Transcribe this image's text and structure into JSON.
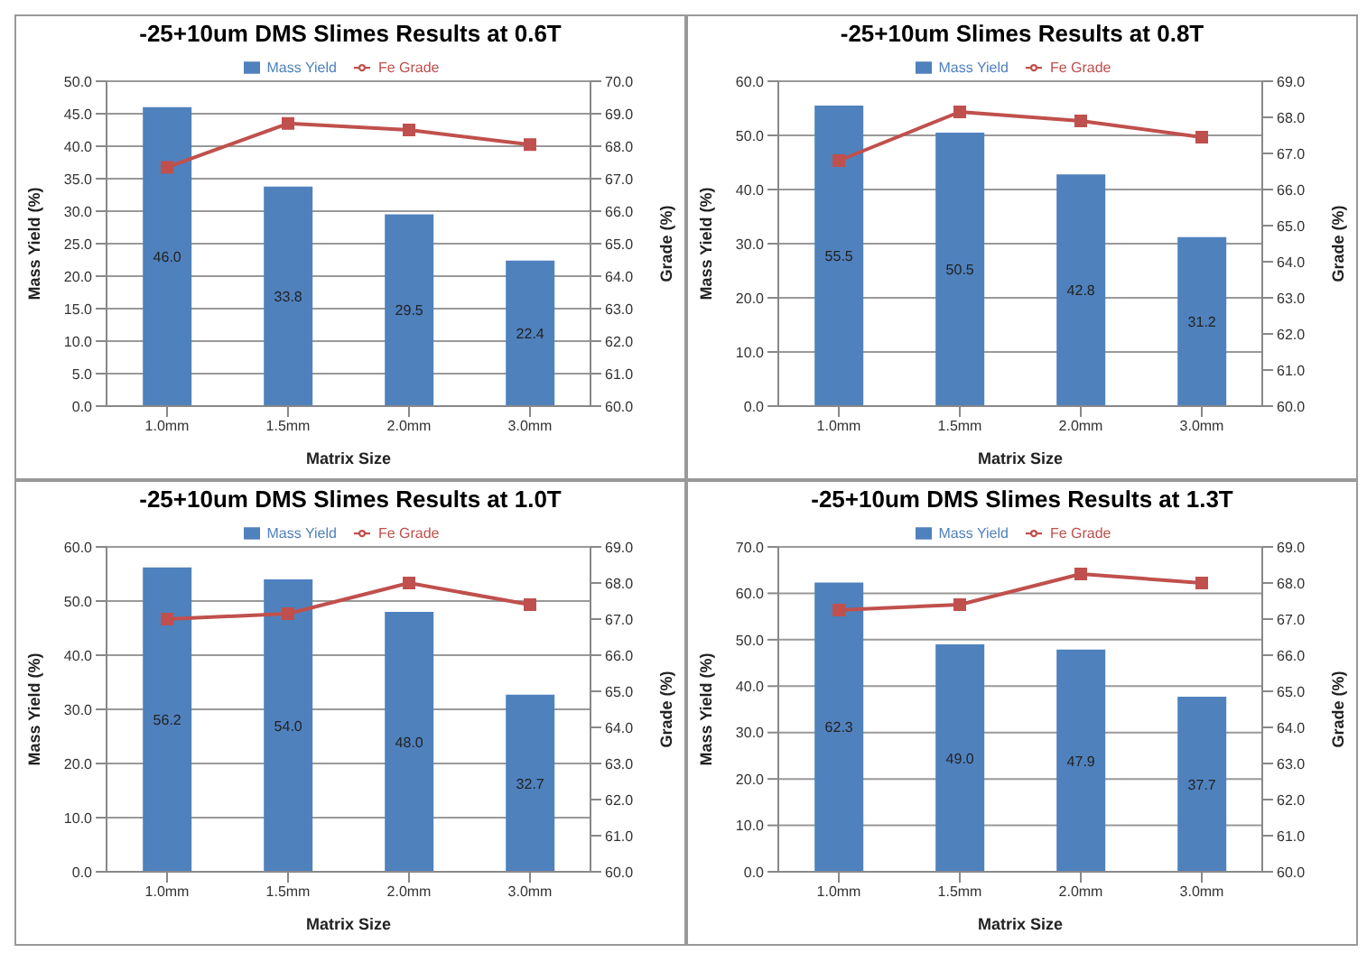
{
  "chart_data": [
    {
      "type": "bar",
      "title": "-25+10um DMS Slimes Results at 0.6T",
      "xlabel": "Matrix Size",
      "ylabel": "Mass Yield (%)",
      "y2label": "Grade (%)",
      "categories": [
        "1.0mm",
        "1.5mm",
        "2.0mm",
        "3.0mm"
      ],
      "series": [
        {
          "name": "Mass Yield",
          "color": "#4f81bd",
          "values": [
            46.0,
            33.8,
            29.5,
            22.4
          ],
          "value_labels": [
            "46.0",
            "33.8",
            "29.5",
            "22.4"
          ]
        },
        {
          "name": "Fe Grade",
          "type": "line",
          "axis": "y2",
          "color": "#c0504d",
          "marker": "square",
          "values": [
            67.35,
            68.7,
            68.5,
            68.05
          ]
        }
      ],
      "ylim": [
        0,
        50
      ],
      "yticks": [
        {
          "value": 0,
          "label": "0.0"
        },
        {
          "value": 5,
          "label": "5.0"
        },
        {
          "value": 10,
          "label": "10.0"
        },
        {
          "value": 15,
          "label": "15.0"
        },
        {
          "value": 20,
          "label": "20.0"
        },
        {
          "value": 25,
          "label": "25.0"
        },
        {
          "value": 30,
          "label": "30.0"
        },
        {
          "value": 35,
          "label": "35.0"
        },
        {
          "value": 40,
          "label": "40.0"
        },
        {
          "value": 45,
          "label": "45.0"
        },
        {
          "value": 50,
          "label": "50.0"
        }
      ],
      "y2lim": [
        60,
        70
      ],
      "y2ticks": [
        {
          "value": 60,
          "label": "60.0"
        },
        {
          "value": 61,
          "label": "61.0"
        },
        {
          "value": 62,
          "label": "62.0"
        },
        {
          "value": 63,
          "label": "63.0"
        },
        {
          "value": 64,
          "label": "64.0"
        },
        {
          "value": 65,
          "label": "65.0"
        },
        {
          "value": 66,
          "label": "66.0"
        },
        {
          "value": 67,
          "label": "67.0"
        },
        {
          "value": 68,
          "label": "68.0"
        },
        {
          "value": 69,
          "label": "69.0"
        },
        {
          "value": 70,
          "label": "70.0"
        }
      ],
      "grid": "y",
      "legend": "top"
    },
    {
      "type": "bar",
      "title": "-25+10um Slimes Results at 0.8T",
      "xlabel": "Matrix Size",
      "ylabel": "Mass Yield (%)",
      "y2label": "Grade (%)",
      "categories": [
        "1.0mm",
        "1.5mm",
        "2.0mm",
        "3.0mm"
      ],
      "series": [
        {
          "name": "Mass Yield",
          "color": "#4f81bd",
          "values": [
            55.5,
            50.5,
            42.8,
            31.2
          ],
          "value_labels": [
            "55.5",
            "50.5",
            "42.8",
            "31.2"
          ]
        },
        {
          "name": "Fe Grade",
          "type": "line",
          "axis": "y2",
          "color": "#c0504d",
          "marker": "square",
          "values": [
            66.8,
            68.15,
            67.9,
            67.45
          ]
        }
      ],
      "ylim": [
        0,
        60
      ],
      "yticks": [
        {
          "value": 0,
          "label": "0.0"
        },
        {
          "value": 10,
          "label": "10.0"
        },
        {
          "value": 20,
          "label": "20.0"
        },
        {
          "value": 30,
          "label": "30.0"
        },
        {
          "value": 40,
          "label": "40.0"
        },
        {
          "value": 50,
          "label": "50.0"
        },
        {
          "value": 60,
          "label": "60.0"
        }
      ],
      "y2lim": [
        60,
        69
      ],
      "y2ticks": [
        {
          "value": 60,
          "label": "60.0"
        },
        {
          "value": 61,
          "label": "61.0"
        },
        {
          "value": 62,
          "label": "62.0"
        },
        {
          "value": 63,
          "label": "63.0"
        },
        {
          "value": 64,
          "label": "64.0"
        },
        {
          "value": 65,
          "label": "65.0"
        },
        {
          "value": 66,
          "label": "66.0"
        },
        {
          "value": 67,
          "label": "67.0"
        },
        {
          "value": 68,
          "label": "68.0"
        },
        {
          "value": 69,
          "label": "69.0"
        }
      ],
      "grid": "y",
      "legend": "top"
    },
    {
      "type": "bar",
      "title": "-25+10um DMS Slimes Results at 1.0T",
      "xlabel": "Matrix Size",
      "ylabel": "Mass Yield (%)",
      "y2label": "Grade (%)",
      "categories": [
        "1.0mm",
        "1.5mm",
        "2.0mm",
        "3.0mm"
      ],
      "series": [
        {
          "name": "Mass Yield",
          "color": "#4f81bd",
          "values": [
            56.2,
            54.0,
            48.0,
            32.7
          ],
          "value_labels": [
            "56.2",
            "54.0",
            "48.0",
            "32.7"
          ]
        },
        {
          "name": "Fe Grade",
          "type": "line",
          "axis": "y2",
          "color": "#c0504d",
          "marker": "square",
          "values": [
            67.0,
            67.15,
            68.0,
            67.4
          ]
        }
      ],
      "ylim": [
        0,
        60
      ],
      "yticks": [
        {
          "value": 0,
          "label": "0.0"
        },
        {
          "value": 10,
          "label": "10.0"
        },
        {
          "value": 20,
          "label": "20.0"
        },
        {
          "value": 30,
          "label": "30.0"
        },
        {
          "value": 40,
          "label": "40.0"
        },
        {
          "value": 50,
          "label": "50.0"
        },
        {
          "value": 60,
          "label": "60.0"
        }
      ],
      "y2lim": [
        60,
        69
      ],
      "y2ticks": [
        {
          "value": 60,
          "label": "60.0"
        },
        {
          "value": 61,
          "label": "61.0"
        },
        {
          "value": 62,
          "label": "62.0"
        },
        {
          "value": 63,
          "label": "63.0"
        },
        {
          "value": 64,
          "label": "64.0"
        },
        {
          "value": 65,
          "label": "65.0"
        },
        {
          "value": 66,
          "label": "66.0"
        },
        {
          "value": 67,
          "label": "67.0"
        },
        {
          "value": 68,
          "label": "68.0"
        },
        {
          "value": 69,
          "label": "69.0"
        }
      ],
      "grid": "y",
      "legend": "top"
    },
    {
      "type": "bar",
      "title": "-25+10um DMS Slimes Results at 1.3T",
      "xlabel": "Matrix Size",
      "ylabel": "Mass Yield (%)",
      "y2label": "Grade (%)",
      "categories": [
        "1.0mm",
        "1.5mm",
        "2.0mm",
        "3.0mm"
      ],
      "series": [
        {
          "name": "Mass Yield",
          "color": "#4f81bd",
          "values": [
            62.3,
            49.0,
            47.9,
            37.7
          ],
          "value_labels": [
            "62.3",
            "49.0",
            "47.9",
            "37.7"
          ]
        },
        {
          "name": "Fe Grade",
          "type": "line",
          "axis": "y2",
          "color": "#c0504d",
          "marker": "square",
          "values": [
            67.25,
            67.4,
            68.25,
            68.0
          ]
        }
      ],
      "ylim": [
        0,
        70
      ],
      "yticks": [
        {
          "value": 0,
          "label": "0.0"
        },
        {
          "value": 10,
          "label": "10.0"
        },
        {
          "value": 20,
          "label": "20.0"
        },
        {
          "value": 30,
          "label": "30.0"
        },
        {
          "value": 40,
          "label": "40.0"
        },
        {
          "value": 50,
          "label": "50.0"
        },
        {
          "value": 60,
          "label": "60.0"
        },
        {
          "value": 70,
          "label": "70.0"
        }
      ],
      "y2lim": [
        60,
        69
      ],
      "y2ticks": [
        {
          "value": 60,
          "label": "60.0"
        },
        {
          "value": 61,
          "label": "61.0"
        },
        {
          "value": 62,
          "label": "62.0"
        },
        {
          "value": 63,
          "label": "63.0"
        },
        {
          "value": 64,
          "label": "64.0"
        },
        {
          "value": 65,
          "label": "65.0"
        },
        {
          "value": 66,
          "label": "66.0"
        },
        {
          "value": 67,
          "label": "67.0"
        },
        {
          "value": 68,
          "label": "68.0"
        },
        {
          "value": 69,
          "label": "69.0"
        }
      ],
      "grid": "y",
      "legend": "top"
    }
  ]
}
